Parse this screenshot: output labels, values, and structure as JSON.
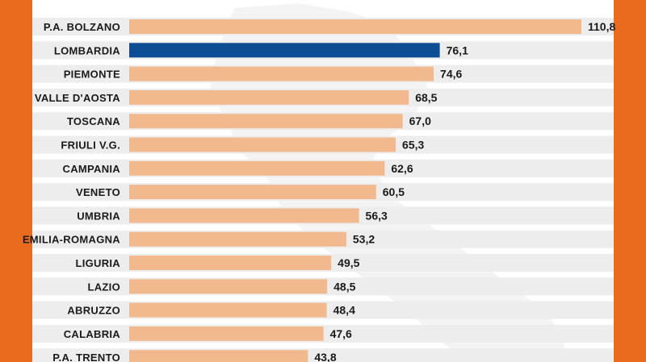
{
  "colors": {
    "frame": "#EA6A1E",
    "bar": "#F2B98E",
    "highlight": "#0E4C94",
    "row_background": "#EDEDED"
  },
  "chart_data": {
    "type": "bar",
    "orientation": "horizontal",
    "categories": [
      "P.A. BOLZANO",
      "LOMBARDIA",
      "PIEMONTE",
      "VALLE D'AOSTA",
      "TOSCANA",
      "FRIULI V.G.",
      "CAMPANIA",
      "VENETO",
      "UMBRIA",
      "EMILIA-ROMAGNA",
      "LIGURIA",
      "LAZIO",
      "ABRUZZO",
      "CALABRIA",
      "P.A. TRENTO"
    ],
    "values": [
      110.8,
      76.1,
      74.6,
      68.5,
      67.0,
      65.3,
      62.6,
      60.5,
      56.3,
      53.2,
      49.5,
      48.5,
      48.4,
      47.6,
      43.8
    ],
    "value_labels": [
      "110,8",
      "76,1",
      "74,6",
      "68,5",
      "67,0",
      "65,3",
      "62,6",
      "60,5",
      "56,3",
      "53,2",
      "49,5",
      "48,5",
      "48,4",
      "47,6",
      "43,8"
    ],
    "highlighted_category": "LOMBARDIA",
    "xlim": [
      0,
      110.8
    ],
    "grid": false,
    "legend": "none"
  }
}
